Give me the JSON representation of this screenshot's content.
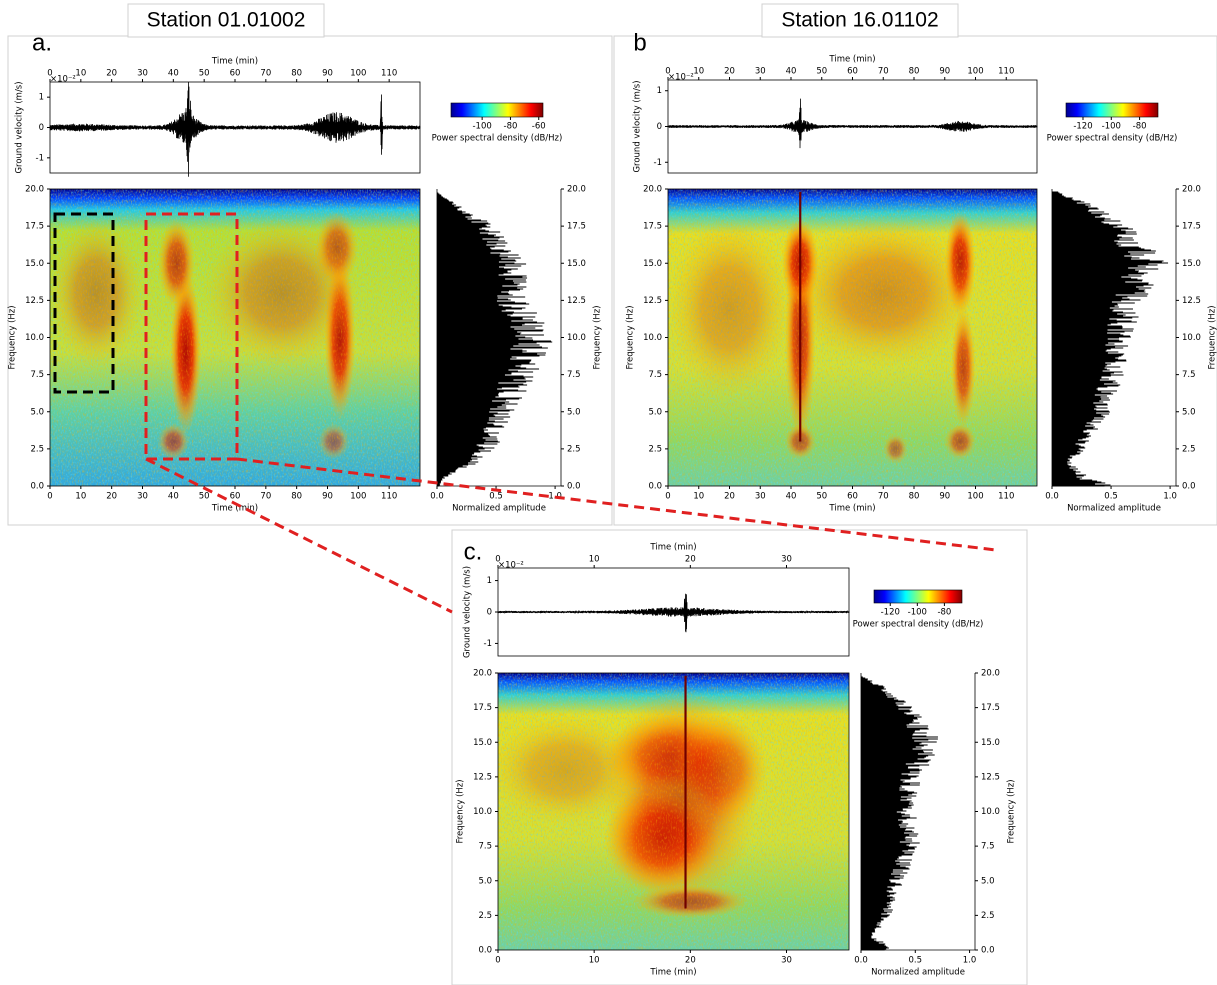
{
  "panels": [
    {
      "label": "a.",
      "station": "Station 01.01002",
      "waveform": {
        "xlabel": "Time (min)",
        "ylabel": "Ground velocity (m/s)",
        "offset": "×10⁻²",
        "xlim": [
          0,
          120
        ],
        "xticks": [
          0,
          10,
          20,
          30,
          40,
          50,
          60,
          70,
          80,
          90,
          100,
          110
        ],
        "ylim": [
          -1.5,
          1.5
        ],
        "yticks": [
          -1,
          0,
          1
        ]
      },
      "colorbar": {
        "label": "Power spectral density (dB/Hz)",
        "lim": [
          -122,
          -57
        ],
        "ticks": [
          -100,
          -80,
          -60
        ]
      },
      "spectrogram": {
        "xlabel": "Time (min)",
        "ylabel": "Frequency (Hz)",
        "xlim": [
          0,
          120
        ],
        "xticks": [
          0,
          10,
          20,
          30,
          40,
          50,
          60,
          70,
          80,
          90,
          100,
          110
        ],
        "ylim": [
          0,
          20
        ],
        "yticks": [
          {
            "value": 0,
            "label": "0.0"
          },
          2.5,
          {
            "value": 5,
            "label": "5.0"
          },
          7.5,
          {
            "value": 10,
            "label": "10.0"
          },
          12.5,
          {
            "value": 15,
            "label": "15.0"
          },
          17.5,
          {
            "value": 20,
            "label": "20.0"
          }
        ]
      },
      "histogram": {
        "xlabel": "Normalized amplitude",
        "ylabel": "Frequency (Hz)",
        "xlim": [
          0,
          1.05
        ],
        "xticks": [
          {
            "value": 0,
            "label": "0.0"
          },
          0.5,
          {
            "value": 1,
            "label": "1.0"
          }
        ],
        "ylim": [
          0,
          20
        ],
        "yticks": [
          {
            "value": 0,
            "label": "0.0"
          },
          2.5,
          {
            "value": 5,
            "label": "5.0"
          },
          7.5,
          {
            "value": 10,
            "label": "10.0"
          },
          12.5,
          {
            "value": 15,
            "label": "15.0"
          },
          17.5,
          {
            "value": 20,
            "label": "20.0"
          }
        ]
      }
    },
    {
      "label": "b",
      "station": "Station 16.01102",
      "waveform": {
        "xlabel": "Time (min)",
        "ylabel": "Ground velocity (m/s)",
        "offset": "×10⁻²",
        "xlim": [
          0,
          120
        ],
        "xticks": [
          0,
          10,
          20,
          30,
          40,
          50,
          60,
          70,
          80,
          90,
          100,
          110
        ],
        "ylim": [
          -1.3,
          1.3
        ],
        "yticks": [
          -1,
          0,
          1
        ]
      },
      "colorbar": {
        "label": "Power spectral density (dB/Hz)",
        "lim": [
          -132,
          -67
        ],
        "ticks": [
          -120,
          -100,
          -80
        ]
      },
      "spectrogram": {
        "xlabel": "Time (min)",
        "ylabel": "Frequency (Hz)",
        "xlim": [
          0,
          120
        ],
        "xticks": [
          0,
          10,
          20,
          30,
          40,
          50,
          60,
          70,
          80,
          90,
          100,
          110
        ],
        "ylim": [
          0,
          20
        ],
        "yticks": [
          {
            "value": 0,
            "label": "0.0"
          },
          2.5,
          {
            "value": 5,
            "label": "5.0"
          },
          7.5,
          {
            "value": 10,
            "label": "10.0"
          },
          12.5,
          {
            "value": 15,
            "label": "15.0"
          },
          17.5,
          {
            "value": 20,
            "label": "20.0"
          }
        ]
      },
      "histogram": {
        "xlabel": "Normalized amplitude",
        "ylabel": "Frequency (Hz)",
        "xlim": [
          0,
          1.05
        ],
        "xticks": [
          {
            "value": 0,
            "label": "0.0"
          },
          0.5,
          {
            "value": 1,
            "label": "1.0"
          }
        ],
        "ylim": [
          0,
          20
        ],
        "yticks": [
          {
            "value": 0,
            "label": "0.0"
          },
          2.5,
          {
            "value": 5,
            "label": "5.0"
          },
          7.5,
          {
            "value": 10,
            "label": "10.0"
          },
          12.5,
          {
            "value": 15,
            "label": "15.0"
          },
          17.5,
          {
            "value": 20,
            "label": "20.0"
          }
        ]
      }
    },
    {
      "label": "c.",
      "waveform": {
        "xlabel": "Time (min)",
        "ylabel": "Ground velocity (m/s)",
        "offset": "×10⁻²",
        "xlim": [
          0,
          36.5
        ],
        "xticks": [
          0,
          10,
          20,
          30
        ],
        "ylim": [
          -1.4,
          1.4
        ],
        "yticks": [
          -1,
          0,
          1
        ]
      },
      "colorbar": {
        "label": "Power spectral density (dB/Hz)",
        "lim": [
          -132,
          -67
        ],
        "ticks": [
          -120,
          -100,
          -80
        ]
      },
      "spectrogram": {
        "xlabel": "Time (min)",
        "ylabel": "Frequency (Hz)",
        "xlim": [
          0,
          36.5
        ],
        "xticks": [
          0,
          10,
          20,
          30
        ],
        "ylim": [
          0,
          20
        ],
        "yticks": [
          {
            "value": 0,
            "label": "0.0"
          },
          2.5,
          {
            "value": 5,
            "label": "5.0"
          },
          7.5,
          {
            "value": 10,
            "label": "10.0"
          },
          12.5,
          {
            "value": 15,
            "label": "15.0"
          },
          17.5,
          {
            "value": 20,
            "label": "20.0"
          }
        ]
      },
      "histogram": {
        "xlabel": "Normalized amplitude",
        "ylabel": "Frequency (Hz)",
        "xlim": [
          0,
          1.05
        ],
        "xticks": [
          {
            "value": 0,
            "label": "0.0"
          },
          0.5,
          {
            "value": 1,
            "label": "1.0"
          }
        ],
        "ylim": [
          0,
          20
        ],
        "yticks": [
          {
            "value": 0,
            "label": "0.0"
          },
          2.5,
          {
            "value": 5,
            "label": "5.0"
          },
          7.5,
          {
            "value": 10,
            "label": "10.0"
          },
          12.5,
          {
            "value": 15,
            "label": "15.0"
          },
          17.5,
          {
            "value": 20,
            "label": "20.0"
          }
        ]
      }
    }
  ]
}
